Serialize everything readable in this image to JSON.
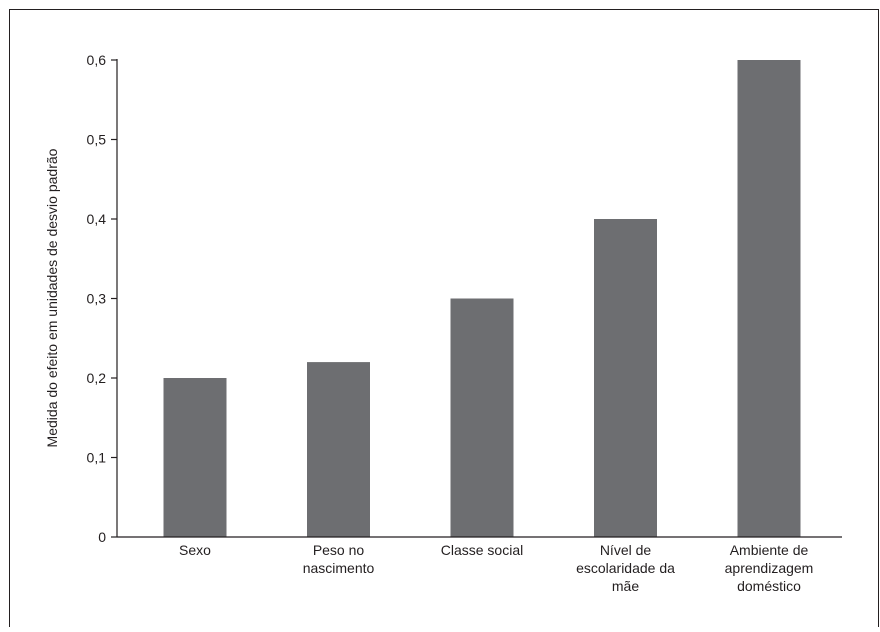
{
  "chart_data": {
    "type": "bar",
    "categories": [
      [
        "Sexo"
      ],
      [
        "Peso no",
        "nascimento"
      ],
      [
        "Classe social"
      ],
      [
        "Nível de",
        "escolaridade da",
        "mãe"
      ],
      [
        "Ambiente de",
        "aprendizagem",
        "doméstico"
      ]
    ],
    "values": [
      0.2,
      0.22,
      0.3,
      0.4,
      0.6
    ],
    "ylabel": "Medida do efeito em unidades de desvio padrão",
    "xlabel": "",
    "ylim": [
      0,
      0.6
    ],
    "yticks": [
      0,
      0.1,
      0.2,
      0.3,
      0.4,
      0.5,
      0.6
    ],
    "ytick_labels": [
      "0",
      "0,1",
      "0,2",
      "0,3",
      "0,4",
      "0,5",
      "0,6"
    ],
    "bar_color": "#6d6e71",
    "axis_color": "#231f20",
    "grid": false,
    "legend": "none"
  }
}
